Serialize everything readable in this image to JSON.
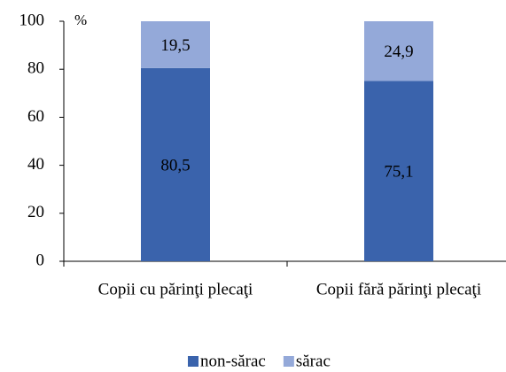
{
  "chart_data": {
    "type": "stacked_bar",
    "y_unit": "%",
    "categories": [
      "Copii cu părinţi plecaţi",
      "Copii fără părinţi plecaţi"
    ],
    "series": [
      {
        "name": "non-sărac",
        "color": "#3a63ac",
        "values": [
          80.5,
          75.1
        ],
        "value_labels": [
          "80,5",
          "75,1"
        ]
      },
      {
        "name": "sărac",
        "color": "#94a9d9",
        "values": [
          19.5,
          24.9
        ],
        "value_labels": [
          "19,5",
          "24,9"
        ]
      }
    ],
    "ylim": [
      0,
      100
    ],
    "yticks": [
      0,
      20,
      40,
      60,
      80,
      100
    ],
    "grid": false,
    "legend": "bottom"
  }
}
